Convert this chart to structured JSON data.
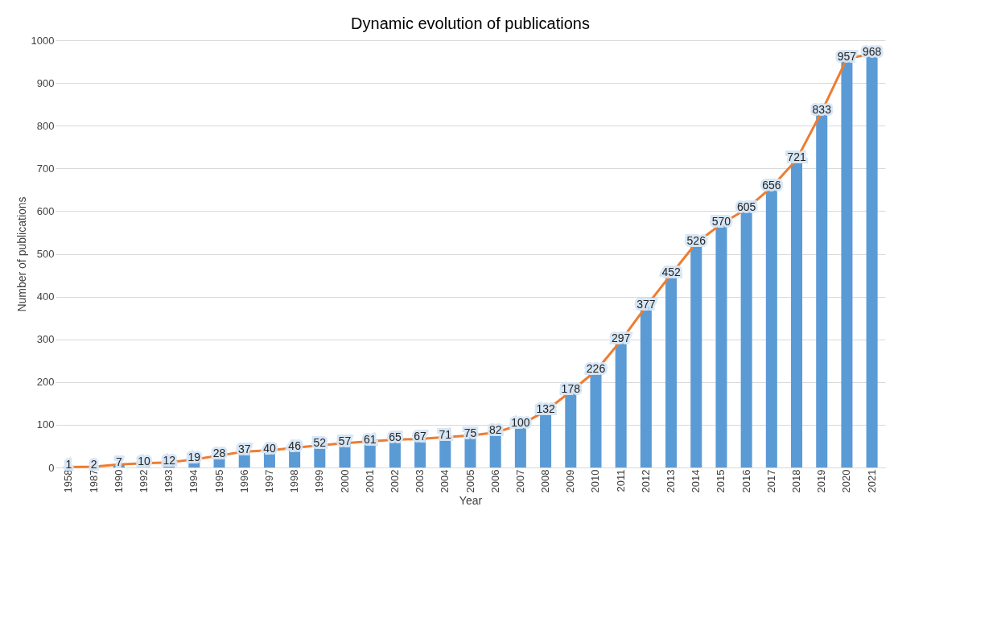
{
  "chart_data": {
    "type": "bar",
    "title": "Dynamic evolution of publications",
    "xlabel": "Year",
    "ylabel": "Number of publications",
    "categories": [
      "1958",
      "1987",
      "1990",
      "1992",
      "1993",
      "1994",
      "1995",
      "1996",
      "1997",
      "1998",
      "1999",
      "2000",
      "2001",
      "2002",
      "2003",
      "2004",
      "2005",
      "2006",
      "2007",
      "2008",
      "2009",
      "2010",
      "2011",
      "2012",
      "2013",
      "2014",
      "2015",
      "2016",
      "2017",
      "2018",
      "2019",
      "2020",
      "2021"
    ],
    "series": [
      {
        "color": "#5b9bd5",
        "values": [
          1,
          2,
          7,
          10,
          12,
          19,
          28,
          37,
          40,
          46,
          52,
          57,
          61,
          65,
          67,
          71,
          75,
          82,
          100,
          132,
          178,
          226,
          297,
          377,
          452,
          526,
          570,
          605,
          656,
          721,
          833,
          957,
          968
        ],
        "value_labels": [
          "1",
          "2",
          "7",
          "10",
          "12",
          "19",
          "28",
          "37",
          "40",
          "46",
          "52",
          "57",
          "61",
          "65",
          "67",
          "71",
          "75",
          "82",
          "100",
          "132",
          "178",
          "226",
          "297",
          "377",
          "452",
          "526",
          "570",
          "605",
          "656",
          "721",
          "833",
          "957",
          "968"
        ]
      },
      {
        "type": "line",
        "color": "#ed7d31",
        "values": [
          1,
          2,
          7,
          10,
          12,
          19,
          28,
          37,
          40,
          46,
          52,
          57,
          61,
          65,
          67,
          71,
          75,
          82,
          100,
          132,
          178,
          226,
          297,
          377,
          452,
          526,
          570,
          605,
          656,
          721,
          833,
          957,
          968
        ]
      }
    ],
    "ylim": [
      0,
      1000
    ],
    "yticks": [
      0,
      100,
      200,
      300,
      400,
      500,
      600,
      700,
      800,
      900,
      1000
    ],
    "grid": "y"
  }
}
